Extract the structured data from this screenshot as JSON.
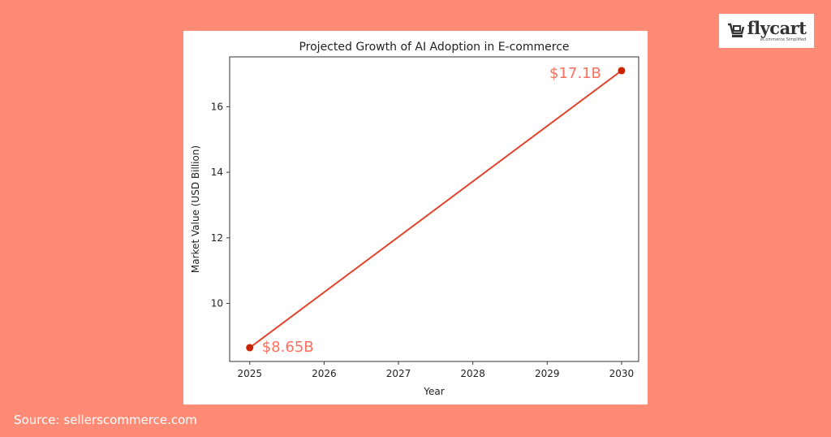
{
  "logo": {
    "brand": "flycart",
    "tagline": "eCommerce Simplified"
  },
  "source": "Source: sellerscommerce.com",
  "colors": {
    "background": "#ff8b77",
    "line": "#e0442a",
    "marker": "#cc2200",
    "annotation": "#ff6f5e"
  },
  "chart_data": {
    "type": "line",
    "title": "Projected Growth of AI Adoption in E-commerce",
    "xlabel": "Year",
    "ylabel": "Market Value (USD Billion)",
    "x": [
      2025,
      2030
    ],
    "series": [
      {
        "values": [
          8.65,
          17.1
        ]
      }
    ],
    "annotations": [
      "$8.65B",
      "$17.1B"
    ],
    "xticks": [
      "2025",
      "2026",
      "2027",
      "2028",
      "2029",
      "2030"
    ],
    "yticks": [
      "10",
      "12",
      "14",
      "16"
    ],
    "xlim": [
      2024.73,
      2030.23
    ],
    "ylim": [
      8.23,
      17.52
    ],
    "grid": false,
    "legend": "none"
  }
}
